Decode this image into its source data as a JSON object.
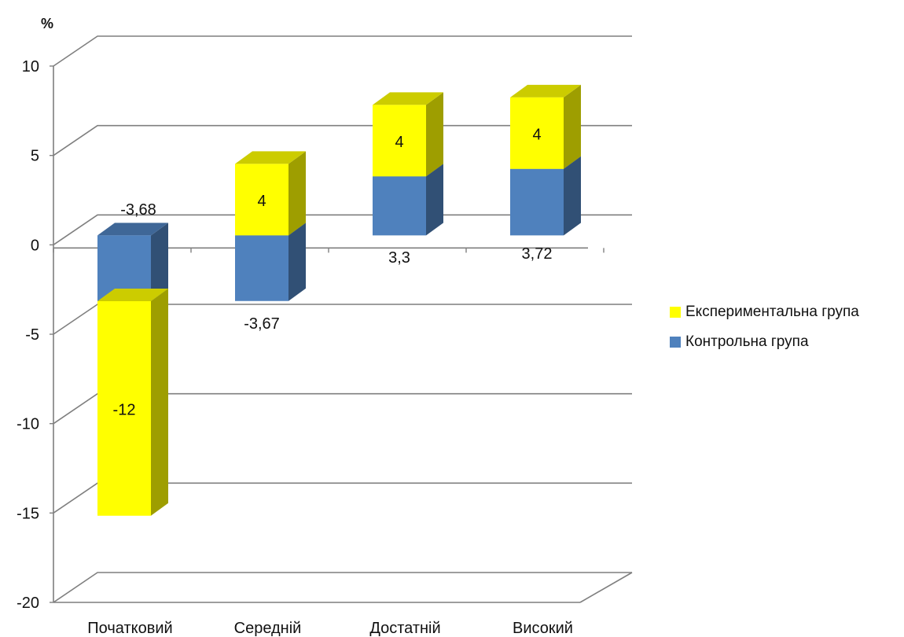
{
  "chart_data": {
    "type": "bar",
    "stacked": true,
    "three_d": true,
    "y_unit_label": "%",
    "ylim": [
      -20,
      10
    ],
    "y_ticks": [
      "10",
      "5",
      "0",
      "-5",
      "-10",
      "-15",
      "-20"
    ],
    "categories": [
      "Початковий",
      "Середній",
      "Достатній",
      "Високий"
    ],
    "series": [
      {
        "name": "Контрольна група",
        "color": "#4f81bd",
        "values": [
          -3.68,
          -3.67,
          3.3,
          3.72
        ],
        "labels": [
          "-3,68",
          "-3,67",
          "3,3",
          "3,72"
        ]
      },
      {
        "name": "Експериментальна група",
        "color": "#ffff00",
        "values": [
          -12,
          4,
          4,
          4
        ],
        "labels": [
          "-12",
          "4",
          "4",
          "4"
        ]
      }
    ],
    "grid": true,
    "legend_position": "right"
  }
}
